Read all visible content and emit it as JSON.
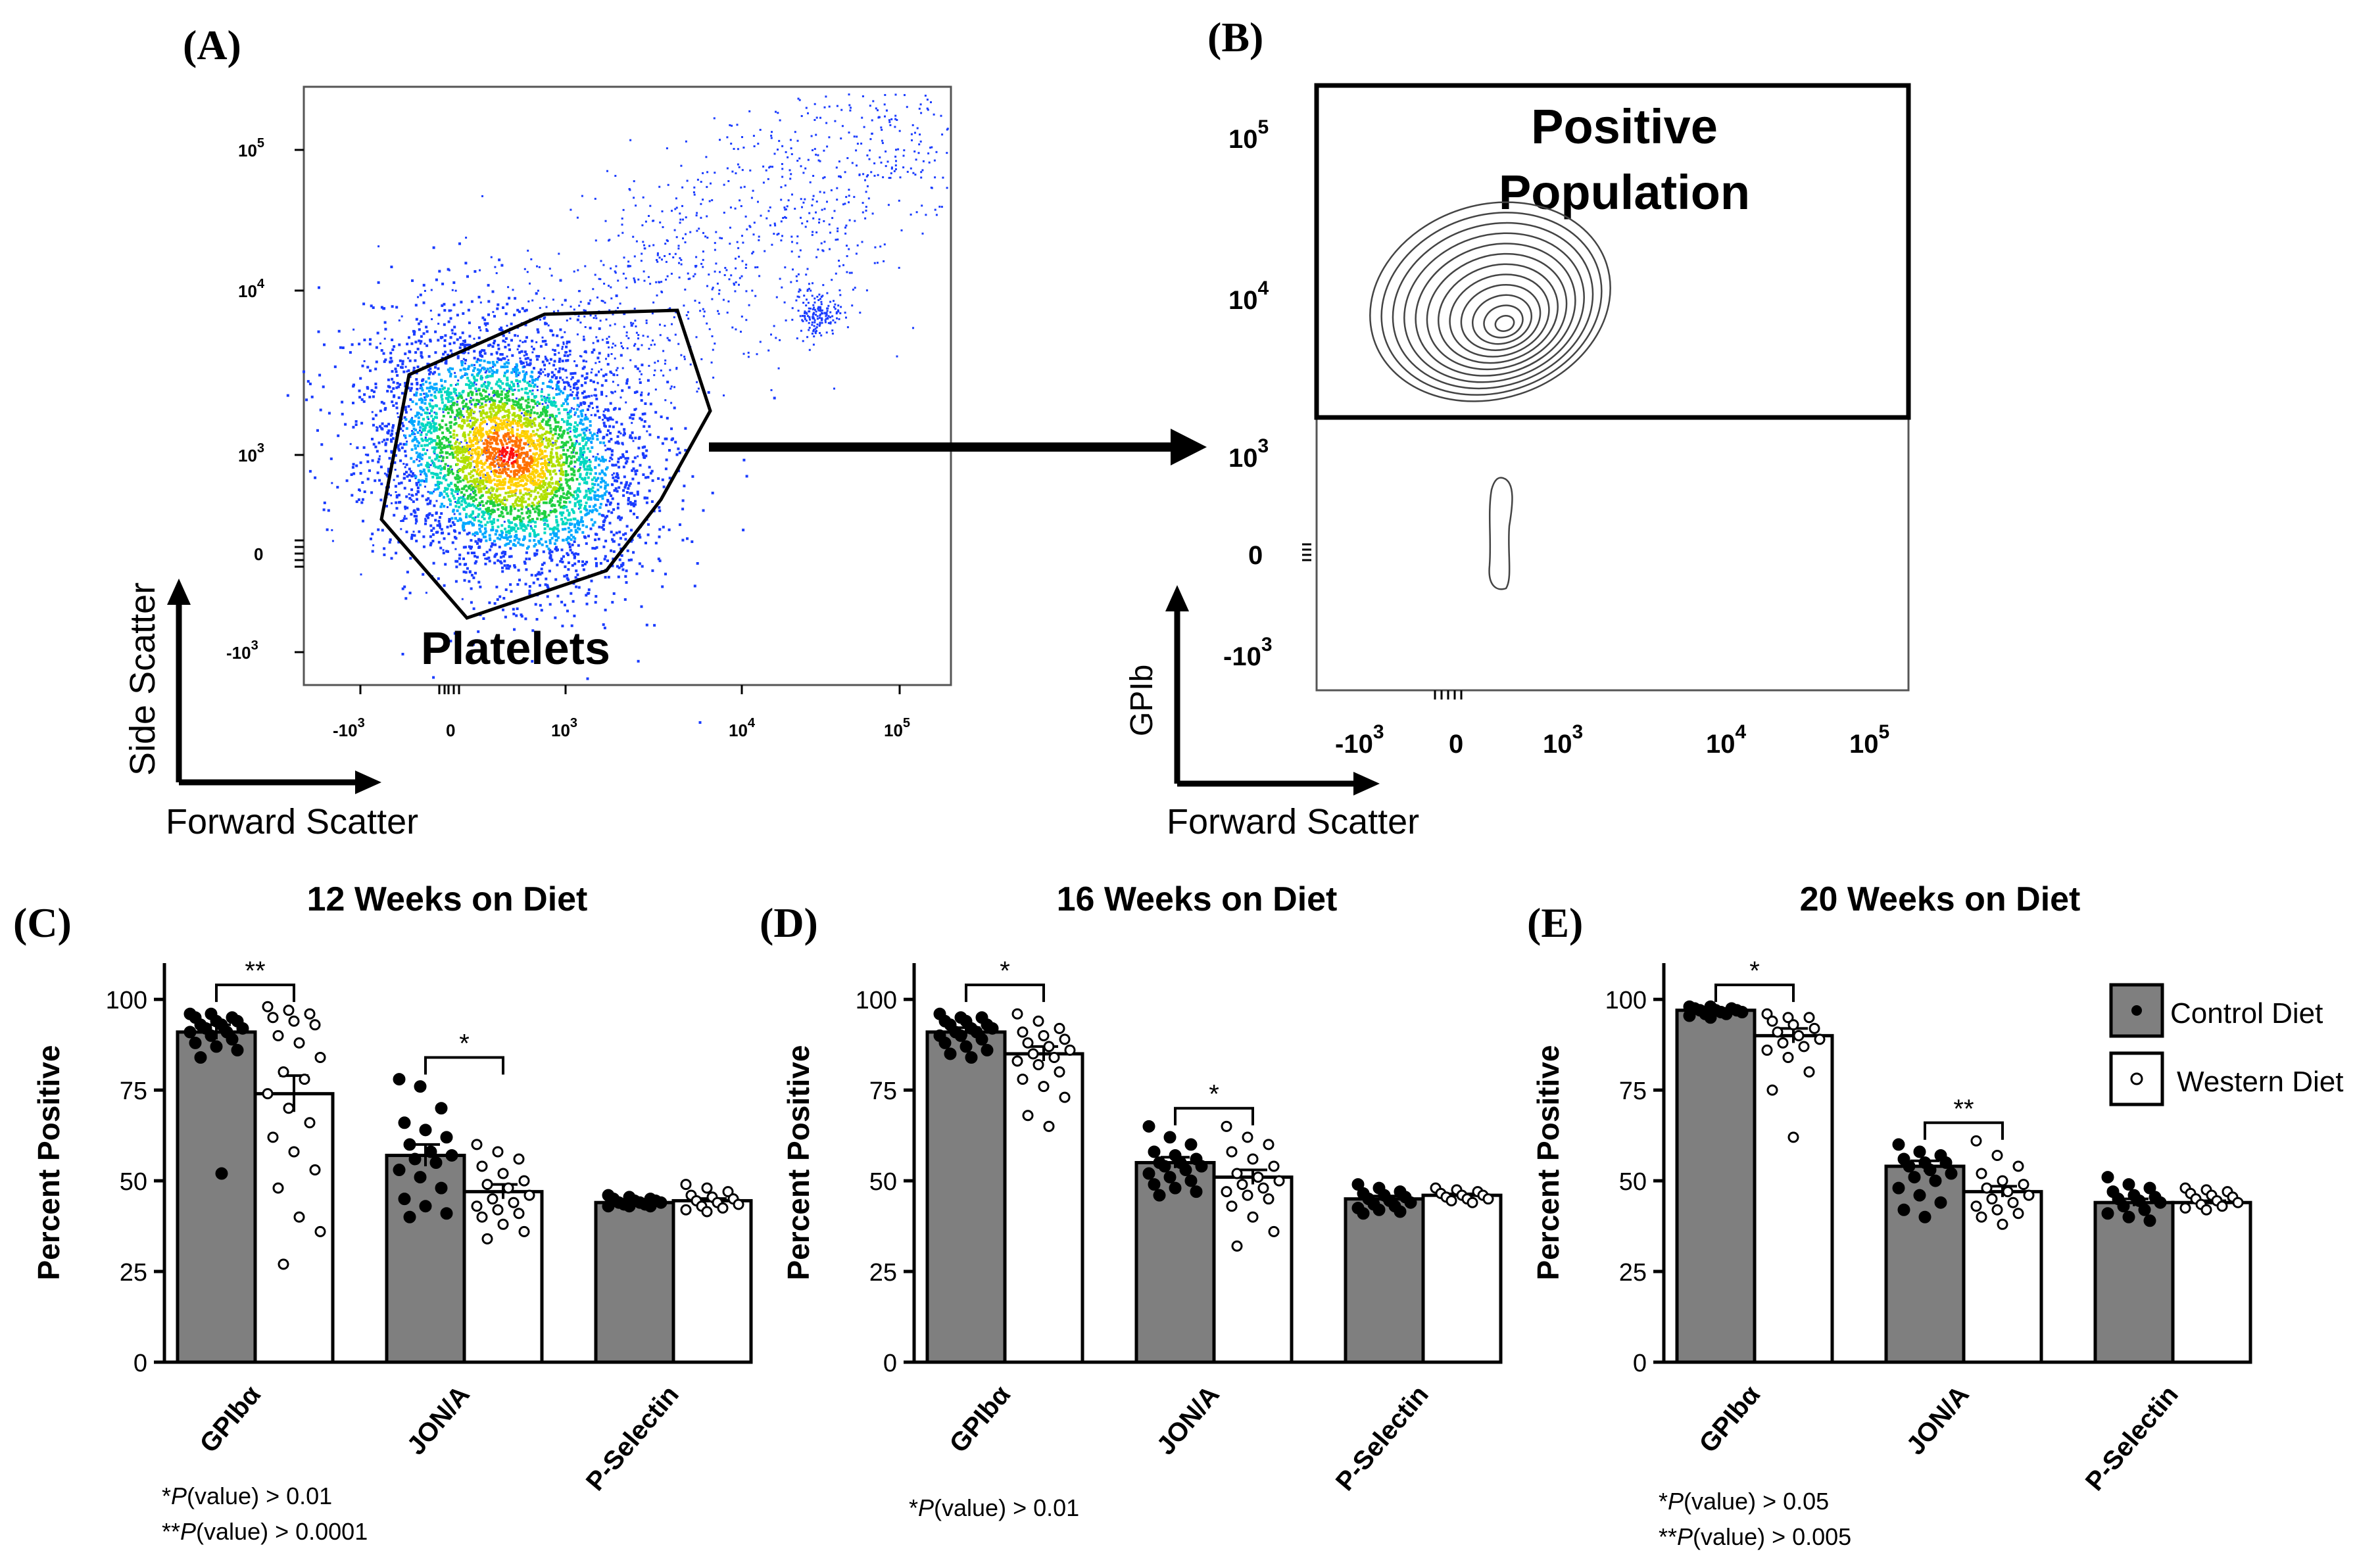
{
  "panels": {
    "a": {
      "label": "(A)",
      "gate_label": "Platelets",
      "x_axis_title": "Forward Scatter",
      "y_axis_title": "Side Scatter",
      "x_ticks": [
        "-10",
        "0",
        "10",
        "10",
        "10"
      ],
      "x_tick_exps": [
        "3",
        "",
        "3",
        "4",
        "5"
      ],
      "y_ticks": [
        "10",
        "10",
        "10",
        "0",
        "-10"
      ],
      "y_tick_exps": [
        "5",
        "4",
        "3",
        "",
        "3"
      ]
    },
    "b": {
      "label": "(B)",
      "gate_label_line1": "Positive",
      "gate_label_line2": "Population",
      "x_axis_title": "Forward Scatter",
      "y_axis_title": "GPIb",
      "x_ticks": [
        "-10",
        "0",
        "10",
        "10",
        "10"
      ],
      "x_tick_exps": [
        "3",
        "",
        "3",
        "4",
        "5"
      ],
      "y_ticks": [
        "10",
        "10",
        "10",
        "0",
        "-10"
      ],
      "y_tick_exps": [
        "5",
        "4",
        "3",
        "",
        "3"
      ]
    }
  },
  "legend": {
    "control": "Control  Diet",
    "western": "Western Diet"
  },
  "colors": {
    "control_bar": "#7f7f7f",
    "western_bar": "#ffffff",
    "dot_scatter": "#1a3cff",
    "axis": "#000000"
  },
  "chart_data": [
    {
      "panel": "(C)",
      "type": "bar",
      "title": "12 Weeks on Diet",
      "ylabel": "Percent Positive",
      "ylim": [
        0,
        110
      ],
      "yticks": [
        0,
        25,
        50,
        75,
        100
      ],
      "categories": [
        "GPIbα",
        "JON/A",
        "P-Selectin"
      ],
      "series": [
        {
          "name": "Control  Diet",
          "values": [
            91,
            57,
            44
          ],
          "errors": [
            2,
            3,
            0.5
          ],
          "points": [
            [
              96,
              96,
              95,
              95,
              94,
              94,
              93,
              93,
              92,
              92,
              91,
              91,
              90,
              89,
              88,
              87,
              86,
              84,
              52
            ],
            [
              78,
              76,
              70,
              66,
              64,
              62,
              60,
              58,
              57,
              56,
              55,
              53,
              51,
              48,
              45,
              43,
              41,
              40
            ],
            [
              46,
              45.5,
              45,
              45,
              44.5,
              44.5,
              44,
              44,
              44,
              43.5,
              43.5,
              43,
              43,
              43
            ]
          ]
        },
        {
          "name": "Western Diet",
          "values": [
            74,
            47,
            44.5
          ],
          "errors": [
            5,
            2,
            0.6
          ],
          "points": [
            [
              98,
              97,
              96,
              95,
              94,
              93,
              90,
              88,
              84,
              80,
              78,
              74,
              70,
              66,
              62,
              58,
              53,
              48,
              40,
              36,
              27
            ],
            [
              60,
              58,
              56,
              54,
              52,
              50,
              49,
              48,
              46,
              45,
              44,
              43,
              42,
              41,
              40,
              38,
              36,
              34
            ],
            [
              49,
              48,
              47,
              46,
              45.5,
              45,
              44.5,
              44,
              43.5,
              43,
              42.5,
              42,
              41.5
            ]
          ]
        }
      ],
      "significance": [
        {
          "category": "GPIbα",
          "label": "**",
          "bracket_y": 104
        },
        {
          "category": "JON/A",
          "label": "*",
          "bracket_y": 84
        }
      ],
      "footnotes": [
        {
          "stars": "*",
          "p": "P",
          "rest": "(value) > 0.01"
        },
        {
          "stars": "**",
          "p": "P",
          "rest": "(value) > 0.0001"
        }
      ]
    },
    {
      "panel": "(D)",
      "type": "bar",
      "title": "16 Weeks on Diet",
      "ylabel": "Percent Positive",
      "ylim": [
        0,
        110
      ],
      "yticks": [
        0,
        25,
        50,
        75,
        100
      ],
      "categories": [
        "GPIbα",
        "JON/A",
        "P-Selectin"
      ],
      "series": [
        {
          "name": "Control  Diet",
          "values": [
            91,
            55,
            45
          ],
          "errors": [
            1.2,
            1.5,
            0.8
          ],
          "points": [
            [
              96,
              95,
              95,
              94,
              94,
              93,
              93,
              92,
              92,
              91,
              91,
              90,
              90,
              89,
              88,
              87,
              86,
              85,
              84
            ],
            [
              65,
              62,
              60,
              58,
              57,
              56,
              55,
              55,
              54,
              54,
              53,
              52,
              51,
              50,
              49,
              48,
              47,
              46
            ],
            [
              49,
              48,
              47,
              46.5,
              46,
              45.5,
              45,
              44.5,
              44,
              43.5,
              43,
              42.5,
              42,
              41.5,
              41
            ]
          ]
        },
        {
          "name": "Western Diet",
          "values": [
            85,
            51,
            46
          ],
          "errors": [
            2,
            2,
            0.4
          ],
          "points": [
            [
              96,
              94,
              92,
              91,
              90,
              89,
              88,
              87,
              86,
              85,
              84,
              83,
              82,
              80,
              78,
              76,
              73,
              68,
              65
            ],
            [
              65,
              62,
              60,
              58,
              56,
              54,
              52,
              51,
              50,
              49,
              48,
              47,
              46,
              45,
              43,
              40,
              36,
              32
            ],
            [
              48,
              47.5,
              47,
              46.5,
              46,
              46,
              45.5,
              45,
              45,
              44.5,
              44
            ]
          ]
        }
      ],
      "significance": [
        {
          "category": "GPIbα",
          "label": "*",
          "bracket_y": 104
        },
        {
          "category": "JON/A",
          "label": "*",
          "bracket_y": 70
        }
      ],
      "footnotes": [
        {
          "stars": "*",
          "p": "P",
          "rest": "(value) > 0.01"
        }
      ]
    },
    {
      "panel": "(E)",
      "type": "bar",
      "title": "20 Weeks on Diet",
      "ylabel": "Percent Positive",
      "ylim": [
        0,
        110
      ],
      "yticks": [
        0,
        25,
        50,
        75,
        100
      ],
      "categories": [
        "GPIbα",
        "JON/A",
        "P-Selectin"
      ],
      "series": [
        {
          "name": "Control  Diet",
          "values": [
            97,
            54,
            44
          ],
          "errors": [
            0.5,
            1.5,
            1
          ],
          "points": [
            [
              98,
              98,
              97.5,
              97.5,
              97,
              97,
              97,
              96.5,
              96.5,
              96,
              96,
              95.5,
              95
            ],
            [
              60,
              58,
              57,
              56,
              55,
              55,
              54,
              53,
              52,
              51,
              50,
              48,
              46,
              44,
              42,
              40
            ],
            [
              51,
              49,
              48,
              47,
              46,
              45.5,
              45,
              44.5,
              44,
              43,
              42,
              41,
              40,
              39
            ]
          ]
        },
        {
          "name": "Western Diet",
          "values": [
            90,
            47,
            44
          ],
          "errors": [
            2,
            1.5,
            0.5
          ],
          "points": [
            [
              96,
              95,
              95,
              94,
              93,
              92,
              91,
              90,
              89,
              88,
              87,
              86,
              84,
              80,
              75,
              62
            ],
            [
              61,
              57,
              54,
              52,
              50,
              49,
              48,
              47,
              46,
              45,
              44,
              43,
              42,
              41,
              40,
              38
            ],
            [
              48,
              47.5,
              47,
              46.5,
              46,
              45.5,
              45,
              44.5,
              44,
              43.5,
              43,
              42.5,
              42
            ]
          ]
        }
      ],
      "significance": [
        {
          "category": "GPIbα",
          "label": "*",
          "bracket_y": 104
        },
        {
          "category": "JON/A",
          "label": "**",
          "bracket_y": 66
        }
      ],
      "footnotes": [
        {
          "stars": "*",
          "p": "P",
          "rest": "(value) > 0.05"
        },
        {
          "stars": "**",
          "p": "P",
          "rest": "(value) > 0.005"
        }
      ]
    }
  ]
}
